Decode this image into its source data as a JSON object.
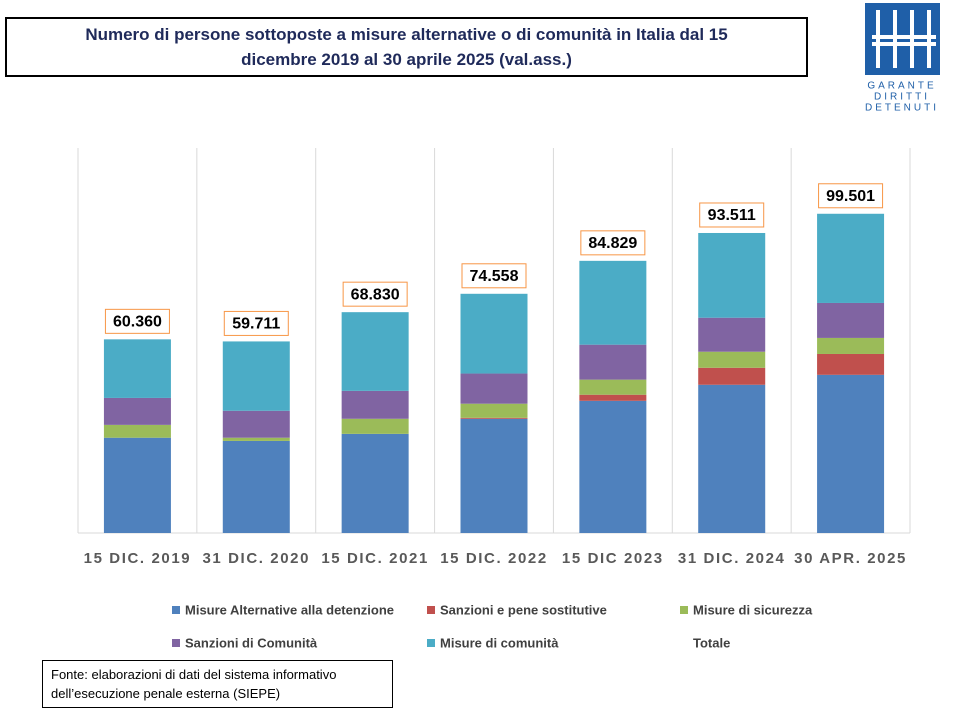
{
  "chart_data": {
    "type": "stacked-bar",
    "title": "Numero di persone sottoposte  a misure alternative o di comunità  in Italia dal 15 dicembre 2019 al 30 aprile 2025 (val.ass.)",
    "logo": [
      "GARANTE",
      "DIRITTI",
      "DETENUTI"
    ],
    "source": "Fonte: elaborazioni di dati del sistema informativo dell’esecuzione penale esterna (SIEPE)",
    "categories": [
      "15 DIC. 2019",
      "31 DIC. 2020",
      "15 DIC. 2021",
      "15 DIC. 2022",
      "15 DIC 2023",
      "31 DIC. 2024",
      "30 APR. 2025"
    ],
    "series": [
      {
        "name": "Misure Alternative alla detenzione",
        "color": "#4f81bd",
        "values": [
          29700,
          28700,
          30900,
          35600,
          41200,
          46200,
          49300
        ]
      },
      {
        "name": "Sanzioni e pene sostitutive",
        "color": "#c0504d",
        "values": [
          0,
          0,
          0,
          300,
          1900,
          5300,
          6500
        ]
      },
      {
        "name": "Misure di sicurezza",
        "color": "#9bbb59",
        "values": [
          4000,
          1000,
          4700,
          4400,
          4700,
          5000,
          5000
        ]
      },
      {
        "name": "Sanzioni di Comunità",
        "color": "#8064a2",
        "values": [
          8400,
          8400,
          8700,
          9400,
          10900,
          10600,
          10900
        ]
      },
      {
        "name": "Misure di comunità",
        "color": "#4bacc6",
        "values": [
          18260,
          21611,
          24530,
          24858,
          26129,
          26411,
          27801
        ]
      },
      {
        "name": "Totale",
        "type": "label",
        "values": [
          60360,
          59711,
          68830,
          74558,
          84829,
          93511,
          99501
        ],
        "value_labels": [
          "60.360",
          "59.711",
          "68.830",
          "74.558",
          "84.829",
          "93.511",
          "99.501"
        ]
      }
    ],
    "ylim": [
      0,
      120000
    ],
    "grid": true
  }
}
